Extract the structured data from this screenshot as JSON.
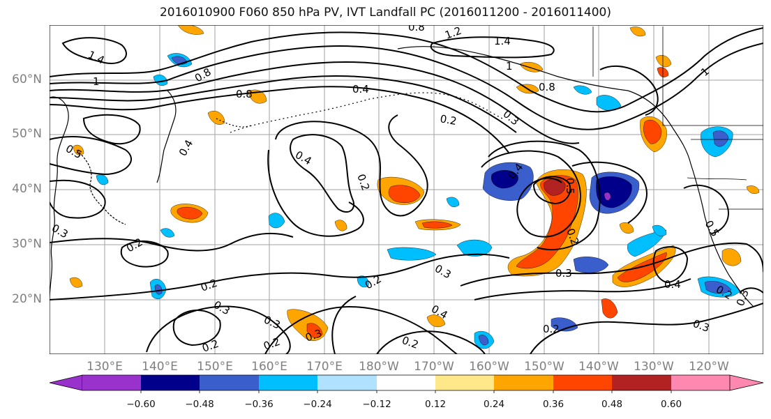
{
  "title": "2016010900 F060 850 hPa PV, IVT Landfall PC (2016011200 - 2016011400)",
  "lat_labels": [
    "60°N",
    "50°N",
    "40°N",
    "30°N",
    "20°N"
  ],
  "lon_labels": [
    "130°E",
    "140°E",
    "150°E",
    "160°E",
    "170°E",
    "180°W",
    "170°W",
    "160°W",
    "150°W",
    "140°W",
    "130°W",
    "120°W"
  ],
  "colorbar": {
    "ticks": [
      "−0.60",
      "−0.48",
      "−0.36",
      "−0.24",
      "−0.12",
      "0.12",
      "0.24",
      "0.36",
      "0.48",
      "0.60"
    ],
    "colors": [
      "#9932cc",
      "#00008b",
      "#3a5fcd",
      "#00bfff",
      "#b0e2ff",
      "#ffffff",
      "#ffe88a",
      "#ffa500",
      "#ff4500",
      "#b22222",
      "#ff88b0"
    ]
  },
  "contour_labels": [
    "0.8",
    "1.2",
    "1.4",
    "1.4",
    "1",
    "0.8",
    "0.4",
    "0.8",
    "0.5",
    "0.2",
    "0.3",
    "0.8",
    "1",
    "0.4",
    "0.2",
    "0.4",
    "0.5",
    "0.2",
    "0.3",
    "0.2",
    "0.4",
    "0.5",
    "0.3",
    "0.2",
    "0.3",
    "0.2",
    "0.3",
    "0.2",
    "0.2",
    "0.3",
    "0.2",
    "0.4",
    "0.3",
    "0.4",
    "0.2",
    "0.3",
    "0.2",
    "0.3",
    "1"
  ],
  "colors": {
    "contour": "#000000",
    "grid": "#a0a0a0",
    "coast": "#000000"
  }
}
